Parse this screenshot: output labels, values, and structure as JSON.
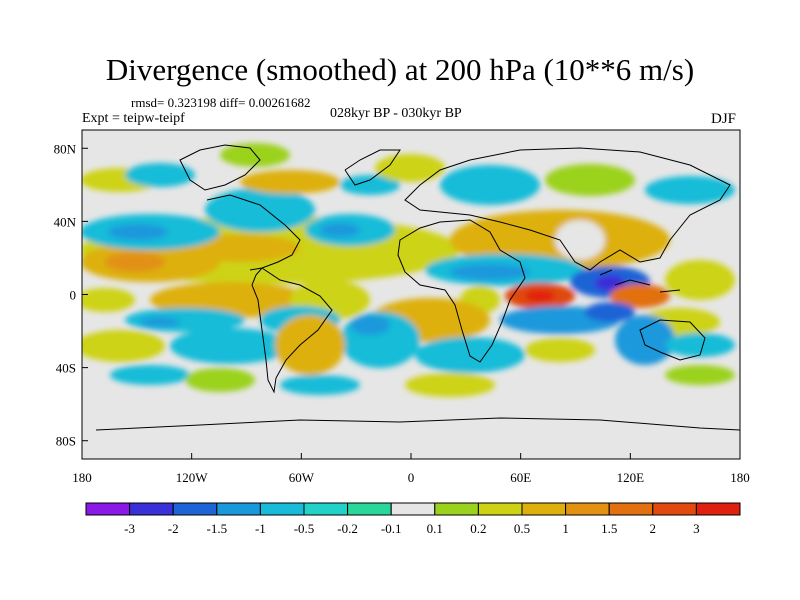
{
  "title": "Divergence (smoothed) at 200 hPa (10**6 m/s)",
  "stats": "rmsd= 0.323198 diff= 0.00261682",
  "experiment": "Expt = teipw-teipf",
  "period": "028kyr BP - 030kyr BP",
  "season": "DJF",
  "lat_labels": [
    {
      "value": 80,
      "label": "80N"
    },
    {
      "value": 40,
      "label": "40N"
    },
    {
      "value": 0,
      "label": "0"
    },
    {
      "value": -40,
      "label": "40S"
    },
    {
      "value": -80,
      "label": "80S"
    }
  ],
  "lon_labels": [
    {
      "value": -180,
      "label": "180"
    },
    {
      "value": -120,
      "label": "120W"
    },
    {
      "value": -60,
      "label": "60W"
    },
    {
      "value": 0,
      "label": "0"
    },
    {
      "value": 60,
      "label": "60E"
    },
    {
      "value": 120,
      "label": "120E"
    },
    {
      "value": 180,
      "label": "180"
    }
  ],
  "colorbar": {
    "colors": [
      "#8a18e6",
      "#3a2fd8",
      "#1e64d6",
      "#1a98dc",
      "#19bcd8",
      "#22d2c8",
      "#2ad79a",
      "#e6e6e6",
      "#9bd21e",
      "#cdd314",
      "#ddb00d",
      "#e29112",
      "#e2700f",
      "#e04a0e",
      "#e0200f"
    ],
    "labels": [
      "-3",
      "-2",
      "-1.5",
      "-1",
      "-0.5",
      "-0.2",
      "-0.1",
      "0.1",
      "0.2",
      "0.5",
      "1",
      "1.5",
      "2",
      "3"
    ]
  }
}
